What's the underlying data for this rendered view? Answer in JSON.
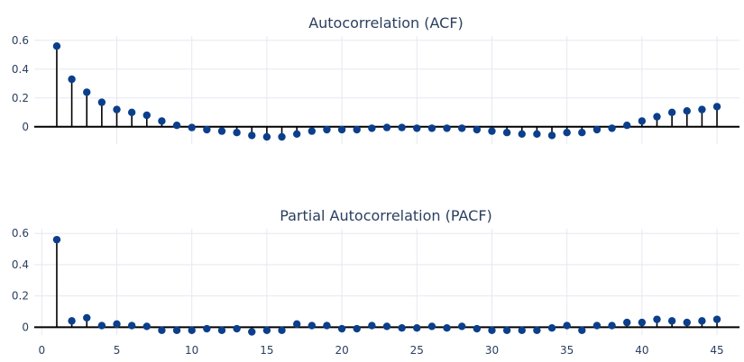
{
  "chart_data": [
    {
      "type": "stem",
      "title": "Autocorrelation (ACF)",
      "xlabel": "",
      "ylabel": "",
      "x": [
        1,
        2,
        3,
        4,
        5,
        6,
        7,
        8,
        9,
        10,
        11,
        12,
        13,
        14,
        15,
        16,
        17,
        18,
        19,
        20,
        21,
        22,
        23,
        24,
        25,
        26,
        27,
        28,
        29,
        30,
        31,
        32,
        33,
        34,
        35,
        36,
        37,
        38,
        39,
        40,
        41,
        42,
        43,
        44,
        45
      ],
      "values": [
        0.56,
        0.33,
        0.24,
        0.17,
        0.12,
        0.1,
        0.08,
        0.04,
        0.01,
        -0.005,
        -0.02,
        -0.03,
        -0.04,
        -0.06,
        -0.07,
        -0.07,
        -0.05,
        -0.03,
        -0.02,
        -0.02,
        -0.02,
        -0.01,
        -0.005,
        -0.005,
        -0.01,
        -0.01,
        -0.01,
        -0.01,
        -0.02,
        -0.03,
        -0.04,
        -0.05,
        -0.05,
        -0.06,
        -0.04,
        -0.04,
        -0.02,
        -0.01,
        0.01,
        0.04,
        0.07,
        0.1,
        0.11,
        0.12,
        0.14
      ],
      "yticks": [
        0,
        0.2,
        0.4,
        0.6
      ],
      "ytick_labels": [
        "0",
        "0.2",
        "0.4",
        "0.6"
      ],
      "xticks": [
        5,
        10,
        15,
        20,
        25,
        30,
        35,
        40,
        45
      ],
      "xlim": [
        -0.5,
        46.5
      ],
      "ylim": [
        -0.12,
        0.63
      ],
      "grid": true,
      "show_x_tick_labels": false
    },
    {
      "type": "stem",
      "title": "Partial Autocorrelation (PACF)",
      "xlabel": "",
      "ylabel": "",
      "x": [
        1,
        2,
        3,
        4,
        5,
        6,
        7,
        8,
        9,
        10,
        11,
        12,
        13,
        14,
        15,
        16,
        17,
        18,
        19,
        20,
        21,
        22,
        23,
        24,
        25,
        26,
        27,
        28,
        29,
        30,
        31,
        32,
        33,
        34,
        35,
        36,
        37,
        38,
        39,
        40,
        41,
        42,
        43,
        44,
        45
      ],
      "values": [
        0.56,
        0.04,
        0.06,
        0.01,
        0.02,
        0.01,
        0.005,
        -0.02,
        -0.02,
        -0.02,
        -0.01,
        -0.02,
        -0.01,
        -0.03,
        -0.02,
        -0.02,
        0.02,
        0.01,
        0.01,
        -0.01,
        -0.01,
        0.01,
        0.005,
        -0.005,
        -0.005,
        0.005,
        -0.005,
        0.005,
        -0.01,
        -0.02,
        -0.02,
        -0.02,
        -0.02,
        -0.005,
        0.01,
        -0.02,
        0.01,
        0.01,
        0.03,
        0.03,
        0.05,
        0.04,
        0.03,
        0.04,
        0.05
      ],
      "yticks": [
        0,
        0.2,
        0.4,
        0.6
      ],
      "ytick_labels": [
        "0",
        "0.2",
        "0.4",
        "0.6"
      ],
      "xticks": [
        0,
        5,
        10,
        15,
        20,
        25,
        30,
        35,
        40,
        45
      ],
      "xtick_labels": [
        "0",
        "5",
        "10",
        "15",
        "20",
        "25",
        "30",
        "35",
        "40",
        "45"
      ],
      "xlim": [
        -0.5,
        46.5
      ],
      "ylim": [
        -0.05,
        0.63
      ],
      "grid": true,
      "show_x_tick_labels": true
    }
  ],
  "colors": {
    "marker": "#0b3f8c",
    "stem": "#000000",
    "zero_line": "#000000",
    "grid": "#e6e8f0",
    "text": "#2a3f5f"
  }
}
